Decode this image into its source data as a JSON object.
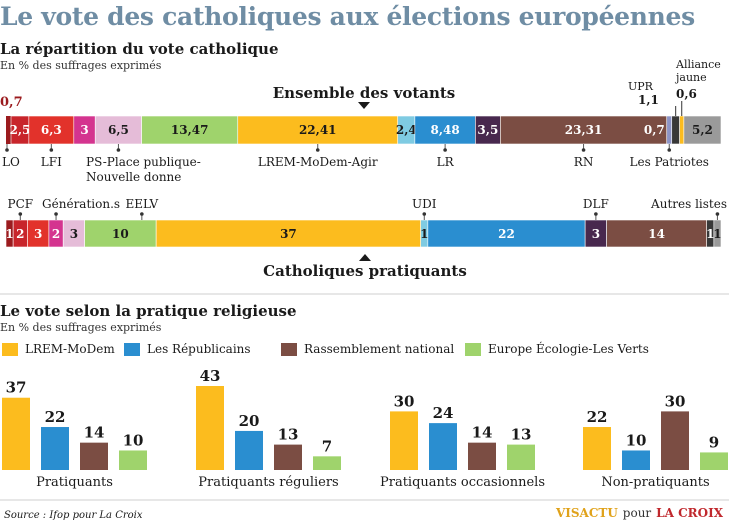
{
  "title": "Le vote des catholiques aux élections européennes",
  "section1": {
    "title": "La répartition du vote catholique",
    "subtitle": "En % des suffrages exprimés"
  },
  "section2": {
    "title": "Le vote selon la pratique religieuse",
    "subtitle": "En % des suffrages exprimés"
  },
  "source": "Source : Ifop pour La Croix",
  "credit": {
    "brand": "VISACTU",
    "pour": "pour",
    "paper": "LA CROIX"
  },
  "colors": {
    "LO": "#9b1b1e",
    "LFI": "#e2322b",
    "Generation": "#d4348f",
    "PS": "#e5bcd8",
    "EELV": "#9fd36c",
    "LREM": "#fcbc1e",
    "UDI": "#7fcbe2",
    "LR": "#2a8ed0",
    "DLF": "#48284e",
    "RN": "#7b4d43",
    "Patriotes": "#8d94c6",
    "UPR": "#383838",
    "Alliance": "#fcbc1e",
    "Autres": "#9a9a9a",
    "PCF": "#c8252b",
    "title": "#6f8da4"
  },
  "chart_data": [
    {
      "type": "bar",
      "stacked": true,
      "orientation": "horizontal",
      "title": "Ensemble des votants",
      "segments": [
        {
          "key": "LO",
          "label": "LO",
          "value": 0.7,
          "display": "0,7"
        },
        {
          "key": "LFI",
          "label": "LFI",
          "value": 6.3,
          "display": "6,3"
        },
        {
          "key": "Generation",
          "label": "Génération.s",
          "value": 3,
          "display": "3"
        },
        {
          "key": "PS",
          "label": "PS-Place publique-Nouvelle donne",
          "value": 6.5,
          "display": "6,5"
        },
        {
          "key": "EELV",
          "label": "EELV",
          "value": 13.47,
          "display": "13,47"
        },
        {
          "key": "LREM",
          "label": "LREM-MoDem-Agir",
          "value": 22.41,
          "display": "22,41"
        },
        {
          "key": "UDI",
          "label": "UDI",
          "value": 2.4,
          "display": "2,4"
        },
        {
          "key": "LR",
          "label": "LR",
          "value": 8.48,
          "display": "8,48"
        },
        {
          "key": "DLF",
          "label": "DLF",
          "value": 3.5,
          "display": "3,5"
        },
        {
          "key": "RN",
          "label": "RN",
          "value": 23.31,
          "display": "23,31"
        },
        {
          "key": "Patriotes",
          "label": "Les Patriotes",
          "value": 0.7,
          "display": "0,7"
        },
        {
          "key": "UPR",
          "label": "UPR",
          "value": 1.1,
          "display": "1,1"
        },
        {
          "key": "Alliance",
          "label": "Alliance jaune",
          "value": 0.6,
          "display": "0,6"
        },
        {
          "key": "Autres",
          "label": "Autres listes",
          "value": 5.2,
          "display": "5,2"
        }
      ],
      "extra_first_value": {
        "key": "PCF",
        "value": 2.5,
        "display": "2,5"
      }
    },
    {
      "type": "bar",
      "stacked": true,
      "orientation": "horizontal",
      "title": "Catholiques pratiquants",
      "segments": [
        {
          "key": "LO",
          "label": "LO",
          "value": 1,
          "display": "1"
        },
        {
          "key": "PCF",
          "label": "PCF",
          "value": 2,
          "display": "2"
        },
        {
          "key": "LFI",
          "label": "LFI",
          "value": 3,
          "display": "3"
        },
        {
          "key": "Generation",
          "label": "Génération.s",
          "value": 2,
          "display": "2"
        },
        {
          "key": "PS",
          "label": "PS",
          "value": 3,
          "display": "3"
        },
        {
          "key": "EELV",
          "label": "EELV",
          "value": 10,
          "display": "10"
        },
        {
          "key": "LREM",
          "label": "LREM",
          "value": 37,
          "display": "37"
        },
        {
          "key": "UDI",
          "label": "UDI",
          "value": 1,
          "display": "1"
        },
        {
          "key": "LR",
          "label": "LR",
          "value": 22,
          "display": "22"
        },
        {
          "key": "DLF",
          "label": "DLF",
          "value": 3,
          "display": "3"
        },
        {
          "key": "RN",
          "label": "RN",
          "value": 14,
          "display": "14"
        },
        {
          "key": "UPR",
          "label": "UPR",
          "value": 1,
          "display": "1"
        },
        {
          "key": "Autres",
          "label": "Autres listes",
          "value": 1,
          "display": "1"
        }
      ]
    },
    {
      "type": "bar",
      "title": "Le vote selon la pratique religieuse",
      "categories": [
        "Pratiquants",
        "Pratiquants réguliers",
        "Pratiquants occasionnels",
        "Non-pratiquants"
      ],
      "series": [
        {
          "name": "LREM-MoDem",
          "color": "#fcbc1e",
          "values": [
            37,
            43,
            30,
            22
          ]
        },
        {
          "name": "Les Républicains",
          "color": "#2a8ed0",
          "values": [
            22,
            20,
            24,
            10
          ]
        },
        {
          "name": "Rassemblement national",
          "color": "#7b4d43",
          "values": [
            14,
            13,
            14,
            30
          ]
        },
        {
          "name": "Europe Écologie-Les Verts",
          "color": "#9fd36c",
          "values": [
            10,
            7,
            13,
            9
          ]
        }
      ],
      "legend_position": "top"
    }
  ],
  "annotations": {
    "bar1_top": {
      "LO": "0,7",
      "UPR": "UPR",
      "UPR_value": "1,1",
      "Alliance_line1": "Alliance",
      "Alliance_line2": "jaune",
      "Alliance_value": "0,6"
    },
    "bar1_bottom": {
      "LO": "LO",
      "LFI": "LFI",
      "PS_line1": "PS-Place publique-",
      "PS_line2": "Nouvelle donne",
      "LREM": "LREM-MoDem-Agir",
      "LR": "LR",
      "RN": "RN",
      "Patriotes": "Les Patriotes"
    },
    "bar2_top": {
      "PCF": "PCF",
      "Generation": "Génération.s",
      "EELV": "EELV",
      "UDI": "UDI",
      "DLF": "DLF",
      "Autres": "Autres listes"
    }
  }
}
